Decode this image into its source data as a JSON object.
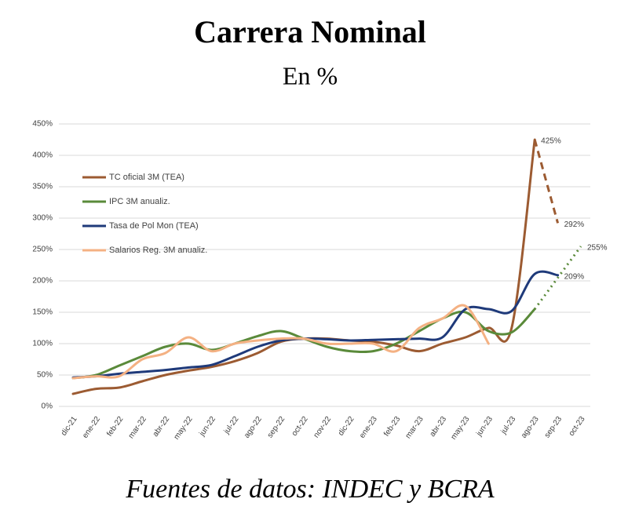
{
  "chart_data": {
    "type": "line",
    "title": "Carrera Nominal",
    "subtitle": "En %",
    "footer": "Fuentes de datos: INDEC y BCRA",
    "categories": [
      "dic-21",
      "ene-22",
      "feb-22",
      "mar-22",
      "abr-22",
      "may-22",
      "jun-22",
      "jul-22",
      "ago-22",
      "sep-22",
      "oct-22",
      "nov-22",
      "dic-22",
      "ene-23",
      "feb-23",
      "mar-23",
      "abr-23",
      "may-23",
      "jun-23",
      "jul-23",
      "ago-23",
      "sep-23",
      "oct-23"
    ],
    "ylim": [
      0,
      450
    ],
    "yticks": [
      {
        "value": 0,
        "label": "0%"
      },
      {
        "value": 50,
        "label": "50%"
      },
      {
        "value": 100,
        "label": "100%"
      },
      {
        "value": 150,
        "label": "150%"
      },
      {
        "value": 200,
        "label": "200%"
      },
      {
        "value": 250,
        "label": "250%"
      },
      {
        "value": 300,
        "label": "300%"
      },
      {
        "value": 350,
        "label": "350%"
      },
      {
        "value": 400,
        "label": "400%"
      },
      {
        "value": 450,
        "label": "450%"
      }
    ],
    "grid": true,
    "legend": "upper left",
    "series": [
      {
        "name": "TC oficial 3M (TEA)",
        "color": "#9c5b32",
        "values": [
          20,
          28,
          30,
          40,
          50,
          57,
          63,
          72,
          85,
          103,
          108,
          108,
          105,
          103,
          97,
          88,
          100,
          110,
          125,
          125,
          425,
          292,
          null
        ],
        "value_labels": [
          null,
          null,
          null,
          null,
          null,
          null,
          null,
          null,
          null,
          null,
          null,
          null,
          null,
          null,
          null,
          null,
          null,
          null,
          null,
          null,
          "425%",
          "292%",
          null
        ],
        "projection": {
          "from": 20,
          "style": "dashed"
        }
      },
      {
        "name": "IPC 3M anualiz.",
        "color": "#5a8a3a",
        "values": [
          45,
          50,
          65,
          80,
          95,
          100,
          90,
          100,
          112,
          120,
          108,
          95,
          88,
          88,
          100,
          120,
          140,
          150,
          120,
          118,
          155,
          205,
          255
        ],
        "value_labels": [
          null,
          null,
          null,
          null,
          null,
          null,
          null,
          null,
          null,
          null,
          null,
          null,
          null,
          null,
          null,
          null,
          null,
          null,
          null,
          null,
          null,
          null,
          "255%"
        ],
        "projection": {
          "from": 20,
          "style": "dotted"
        }
      },
      {
        "name": "Tasa de Pol Mon (TEA)",
        "color": "#1f3a7a",
        "values": [
          46,
          48,
          52,
          55,
          58,
          62,
          66,
          80,
          95,
          105,
          108,
          107,
          105,
          106,
          107,
          108,
          110,
          155,
          155,
          152,
          211,
          209,
          null
        ],
        "value_labels": [
          null,
          null,
          null,
          null,
          null,
          null,
          null,
          null,
          null,
          null,
          null,
          null,
          null,
          null,
          null,
          null,
          null,
          null,
          null,
          null,
          null,
          "209%",
          null
        ]
      },
      {
        "name": "Salarios Reg. 3M anualiz.",
        "color": "#f4b183",
        "values": [
          45,
          48,
          48,
          75,
          85,
          110,
          88,
          100,
          105,
          108,
          108,
          100,
          100,
          100,
          88,
          125,
          140,
          160,
          100,
          null,
          null,
          null,
          null
        ]
      }
    ]
  }
}
